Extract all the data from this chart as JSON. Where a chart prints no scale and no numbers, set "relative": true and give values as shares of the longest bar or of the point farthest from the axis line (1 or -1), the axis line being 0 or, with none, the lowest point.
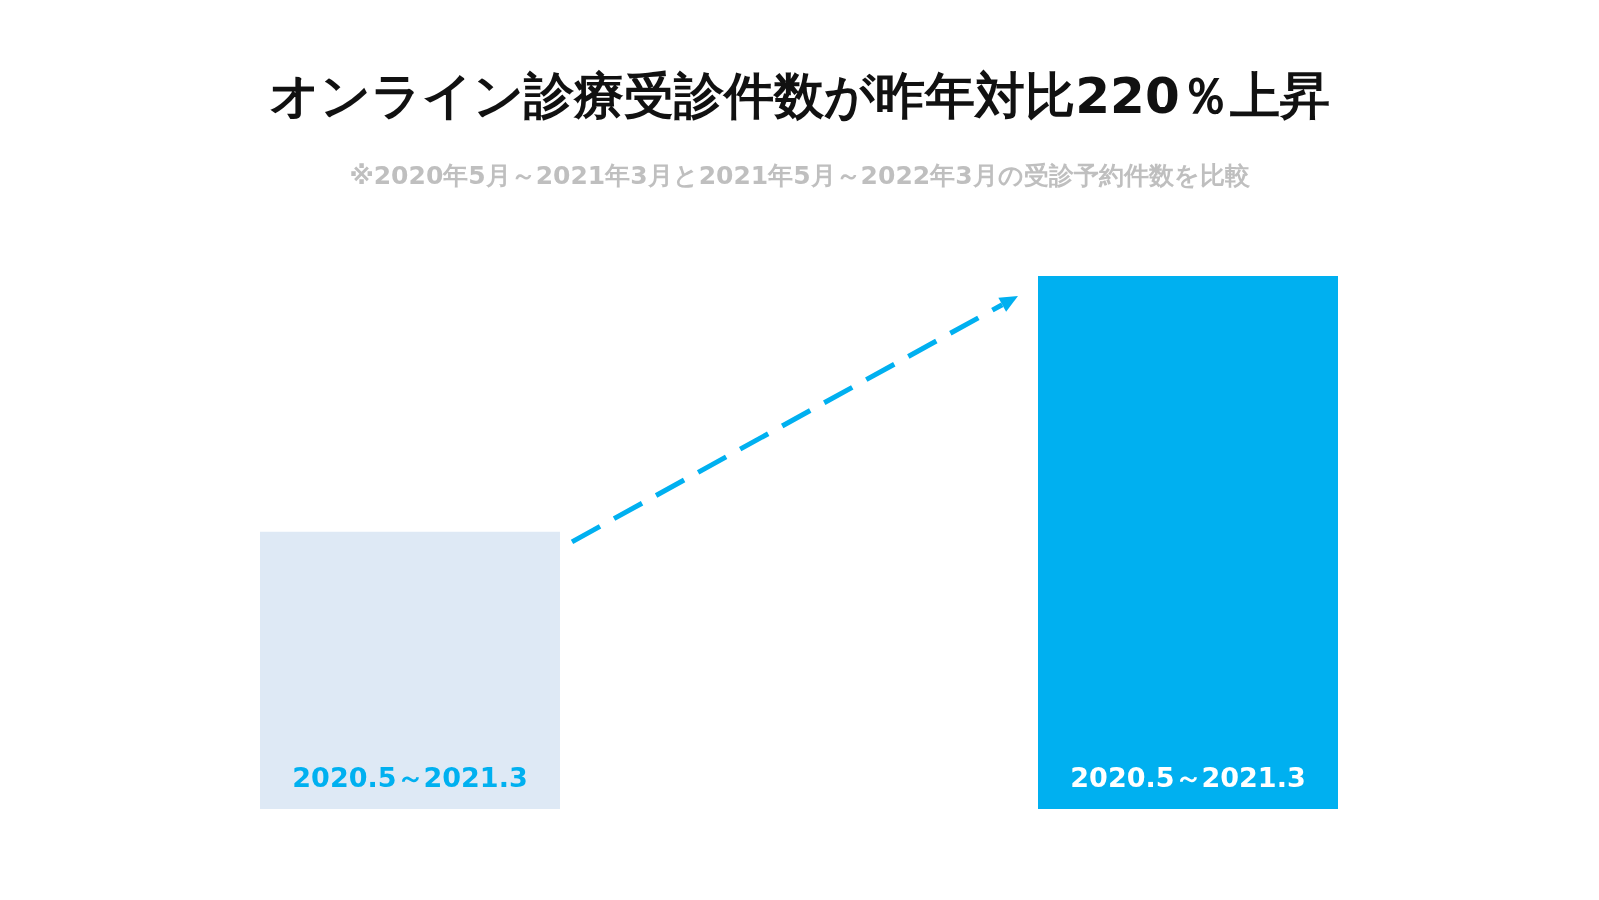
{
  "chart_data": {
    "type": "bar",
    "title": "オンライン診療受診件数が昨年対比220％上昇",
    "subtitle": "※2020年5月～2021年3月と2021年5月～2022年3月の受診予約件数を比較",
    "categories": [
      "2020.5～2021.3",
      "2020.5～2021.3"
    ],
    "values": [
      0.52,
      1
    ],
    "colors": [
      "#dee9f5",
      "#00b0f0"
    ],
    "relative": true
  }
}
